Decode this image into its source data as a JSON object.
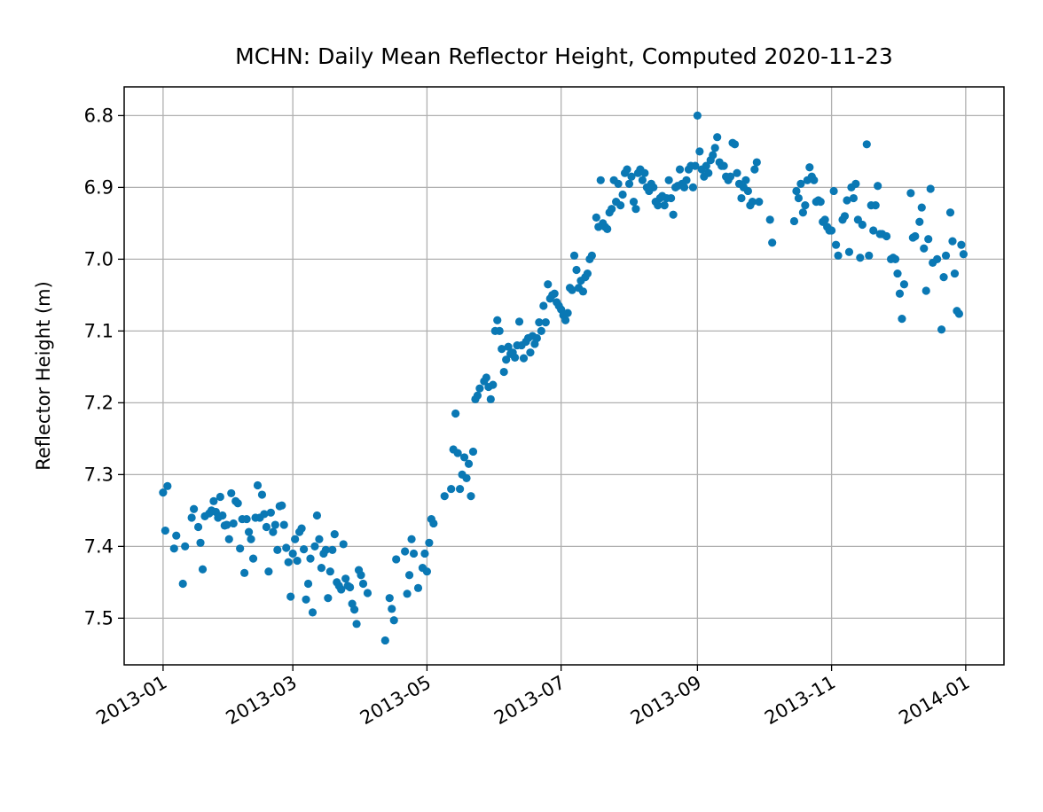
{
  "chart_data": {
    "type": "scatter",
    "title": "MCHN: Daily Mean Reflector Height, Computed 2020-11-23",
    "y_label": "Reflector Height (m)",
    "color": "#0a78b4",
    "grid": true,
    "xlim": [
      -17.7,
      382.4
    ],
    "xticks": [
      {
        "value": 0,
        "label": "2013-01"
      },
      {
        "value": 59,
        "label": "2013-03"
      },
      {
        "value": 120,
        "label": "2013-05"
      },
      {
        "value": 181,
        "label": "2013-07"
      },
      {
        "value": 243,
        "label": "2013-09"
      },
      {
        "value": 304,
        "label": "2013-11"
      },
      {
        "value": 365,
        "label": "2014-01"
      }
    ],
    "ylim": [
      7.565,
      6.76
    ],
    "yticks": [
      6.8,
      6.9,
      {
        "value": 7,
        "label": "7.0"
      },
      7.1,
      7.2,
      7.3,
      7.4,
      7.5
    ],
    "x": [
      0,
      1,
      2,
      5,
      6,
      9,
      10,
      13,
      14,
      16,
      17,
      18,
      19,
      21,
      22,
      23,
      24,
      25,
      26,
      27,
      28,
      29,
      30,
      31,
      32,
      33,
      34,
      35,
      36,
      37,
      38,
      39,
      40,
      41,
      42,
      43,
      44,
      45,
      46,
      47,
      48,
      49,
      50,
      51,
      52,
      53,
      54,
      55,
      56,
      57,
      58,
      59,
      60,
      61,
      62,
      63,
      64,
      65,
      66,
      67,
      68,
      69,
      70,
      71,
      72,
      73,
      74,
      75,
      76,
      77,
      78,
      79,
      80,
      81,
      82,
      83,
      84,
      85,
      86,
      87,
      88,
      89,
      90,
      91,
      93,
      101,
      103,
      104,
      105,
      106,
      110,
      111,
      112,
      113,
      114,
      116,
      118,
      119,
      120,
      121,
      122,
      123,
      128,
      131,
      132,
      133,
      134,
      135,
      136,
      137,
      138,
      139,
      140,
      141,
      142,
      143,
      144,
      146,
      147,
      148,
      149,
      150,
      151,
      152,
      153,
      154,
      155,
      156,
      157,
      158,
      159,
      160,
      161,
      162,
      163,
      164,
      165,
      166,
      167,
      168,
      169,
      170,
      171,
      172,
      173,
      174,
      175,
      176,
      177,
      178,
      179,
      180,
      181,
      182,
      183,
      184,
      185,
      186,
      187,
      188,
      189,
      190,
      191,
      192,
      193,
      194,
      195,
      197,
      198,
      199,
      200,
      201,
      202,
      203,
      204,
      205,
      206,
      207,
      208,
      209,
      210,
      211,
      212,
      213,
      214,
      215,
      216,
      217,
      218,
      219,
      220,
      221,
      222,
      223,
      224,
      225,
      226,
      227,
      228,
      229,
      230,
      231,
      232,
      233,
      234,
      235,
      236,
      237,
      238,
      239,
      240,
      241,
      242,
      243,
      244,
      245,
      246,
      247,
      248,
      249,
      250,
      251,
      252,
      253,
      254,
      255,
      256,
      257,
      258,
      259,
      260,
      261,
      262,
      263,
      264,
      265,
      266,
      267,
      268,
      269,
      270,
      271,
      276,
      277,
      287,
      288,
      289,
      290,
      291,
      292,
      293,
      294,
      295,
      296,
      297,
      298,
      299,
      300,
      301,
      302,
      303,
      304,
      305,
      306,
      307,
      309,
      310,
      311,
      312,
      313,
      314,
      315,
      316,
      317,
      318,
      320,
      321,
      322,
      323,
      324,
      325,
      326,
      327,
      329,
      331,
      332,
      333,
      334,
      335,
      336,
      337,
      340,
      341,
      342,
      344,
      345,
      346,
      347,
      348,
      349,
      350,
      352,
      354,
      355,
      356,
      358,
      359,
      360,
      361,
      362,
      363,
      364
    ],
    "values": [
      7.325,
      7.378,
      7.316,
      7.403,
      7.385,
      7.452,
      7.4,
      7.36,
      7.348,
      7.373,
      7.395,
      7.432,
      7.358,
      7.354,
      7.35,
      7.337,
      7.352,
      7.36,
      7.331,
      7.357,
      7.371,
      7.37,
      7.39,
      7.326,
      7.368,
      7.337,
      7.34,
      7.403,
      7.362,
      7.437,
      7.362,
      7.38,
      7.39,
      7.417,
      7.36,
      7.315,
      7.36,
      7.328,
      7.355,
      7.373,
      7.435,
      7.353,
      7.38,
      7.37,
      7.405,
      7.344,
      7.343,
      7.37,
      7.402,
      7.422,
      7.47,
      7.41,
      7.39,
      7.42,
      7.38,
      7.375,
      7.404,
      7.474,
      7.452,
      7.417,
      7.492,
      7.4,
      7.357,
      7.39,
      7.43,
      7.41,
      7.405,
      7.472,
      7.435,
      7.405,
      7.383,
      7.45,
      7.455,
      7.46,
      7.397,
      7.445,
      7.455,
      7.457,
      7.48,
      7.488,
      7.508,
      7.433,
      7.44,
      7.452,
      7.465,
      7.531,
      7.472,
      7.487,
      7.503,
      7.418,
      7.407,
      7.466,
      7.44,
      7.39,
      7.41,
      7.458,
      7.43,
      7.41,
      7.435,
      7.395,
      7.362,
      7.368,
      7.33,
      7.32,
      7.265,
      7.215,
      7.27,
      7.32,
      7.3,
      7.276,
      7.305,
      7.285,
      7.33,
      7.268,
      7.195,
      7.19,
      7.18,
      7.17,
      7.165,
      7.178,
      7.195,
      7.175,
      7.1,
      7.085,
      7.1,
      7.125,
      7.157,
      7.14,
      7.122,
      7.132,
      7.13,
      7.137,
      7.12,
      7.087,
      7.12,
      7.138,
      7.115,
      7.11,
      7.13,
      7.107,
      7.118,
      7.11,
      7.088,
      7.1,
      7.065,
      7.088,
      7.035,
      7.055,
      7.05,
      7.048,
      7.06,
      7.065,
      7.07,
      7.078,
      7.085,
      7.075,
      7.04,
      7.043,
      6.995,
      7.015,
      7.04,
      7.03,
      7.045,
      7.025,
      7.02,
      7.0,
      6.995,
      6.942,
      6.955,
      6.89,
      6.95,
      6.955,
      6.958,
      6.935,
      6.93,
      6.89,
      6.92,
      6.895,
      6.925,
      6.91,
      6.88,
      6.875,
      6.895,
      6.885,
      6.92,
      6.93,
      6.88,
      6.875,
      6.89,
      6.88,
      6.9,
      6.905,
      6.895,
      6.9,
      6.92,
      6.925,
      6.915,
      6.912,
      6.925,
      6.915,
      6.89,
      6.915,
      6.938,
      6.9,
      6.898,
      6.875,
      6.895,
      6.9,
      6.89,
      6.875,
      6.87,
      6.9,
      6.87,
      6.8,
      6.85,
      6.875,
      6.885,
      6.87,
      6.88,
      6.862,
      6.855,
      6.845,
      6.83,
      6.865,
      6.87,
      6.87,
      6.885,
      6.89,
      6.885,
      6.838,
      6.84,
      6.88,
      6.895,
      6.915,
      6.9,
      6.89,
      6.905,
      6.925,
      6.92,
      6.875,
      6.865,
      6.92,
      6.945,
      6.977,
      6.947,
      6.905,
      6.915,
      6.895,
      6.935,
      6.925,
      6.89,
      6.872,
      6.885,
      6.89,
      6.92,
      6.918,
      6.92,
      6.948,
      6.945,
      6.955,
      6.96,
      6.96,
      6.905,
      6.98,
      6.995,
      6.945,
      6.94,
      6.918,
      6.99,
      6.9,
      6.915,
      6.895,
      6.945,
      6.998,
      6.952,
      6.84,
      6.995,
      6.925,
      6.96,
      6.925,
      6.898,
      6.965,
      6.965,
      6.968,
      7.0,
      6.998,
      7.0,
      7.02,
      7.048,
      7.083,
      7.035,
      6.908,
      6.97,
      6.968,
      6.948,
      6.928,
      6.985,
      7.044,
      6.972,
      6.902,
      7.005,
      7.0,
      7.098,
      7.025,
      6.995,
      6.935,
      6.975,
      7.02,
      7.072,
      7.076,
      6.98,
      6.993
    ]
  }
}
